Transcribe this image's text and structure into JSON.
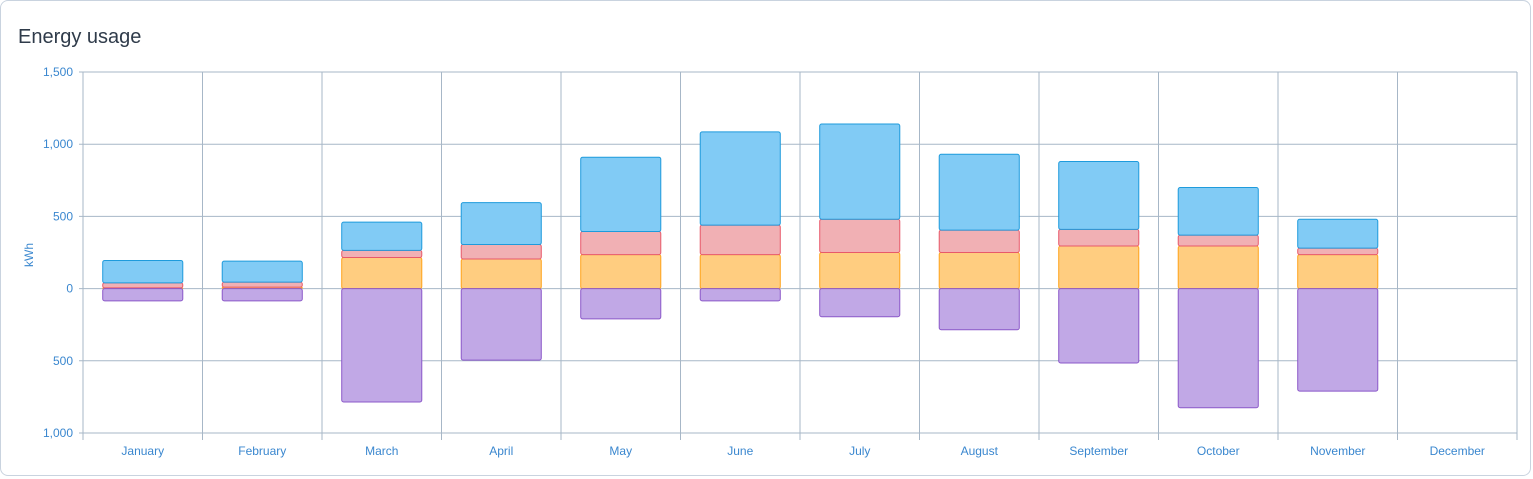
{
  "chart_data": {
    "type": "bar",
    "title": "Energy usage",
    "ylabel": "kWh",
    "xlabel": "",
    "ylim": [
      -1000,
      1500
    ],
    "y_ticks": [
      {
        "value": 1500,
        "label": "1,500"
      },
      {
        "value": 1000,
        "label": "1,000"
      },
      {
        "value": 500,
        "label": "500"
      },
      {
        "value": 0,
        "label": "0"
      },
      {
        "value": -500,
        "label": "500"
      },
      {
        "value": -1000,
        "label": "1,000"
      }
    ],
    "grid": true,
    "legend": "none",
    "categories": [
      "January",
      "February",
      "March",
      "April",
      "May",
      "June",
      "July",
      "August",
      "September",
      "October",
      "November",
      "December"
    ],
    "series": [
      {
        "key": "yellow",
        "fill": "#ffcd80",
        "stroke": "#ffa31a",
        "values": [
          5,
          10,
          215,
          205,
          235,
          235,
          250,
          250,
          295,
          295,
          235,
          0
        ]
      },
      {
        "key": "red",
        "fill": "#f1b0b4",
        "stroke": "#e8596a",
        "values": [
          35,
          35,
          50,
          100,
          160,
          205,
          230,
          155,
          115,
          75,
          45,
          0
        ]
      },
      {
        "key": "blue",
        "fill": "#81cbf5",
        "stroke": "#1e9bdc",
        "values": [
          155,
          145,
          195,
          290,
          515,
          645,
          660,
          525,
          470,
          330,
          200,
          0
        ]
      },
      {
        "key": "purple",
        "fill": "#c1a8e6",
        "stroke": "#8b58c9",
        "values": [
          -85,
          -85,
          -785,
          -495,
          -210,
          -85,
          -195,
          -285,
          -515,
          -825,
          -710,
          0
        ]
      }
    ]
  }
}
